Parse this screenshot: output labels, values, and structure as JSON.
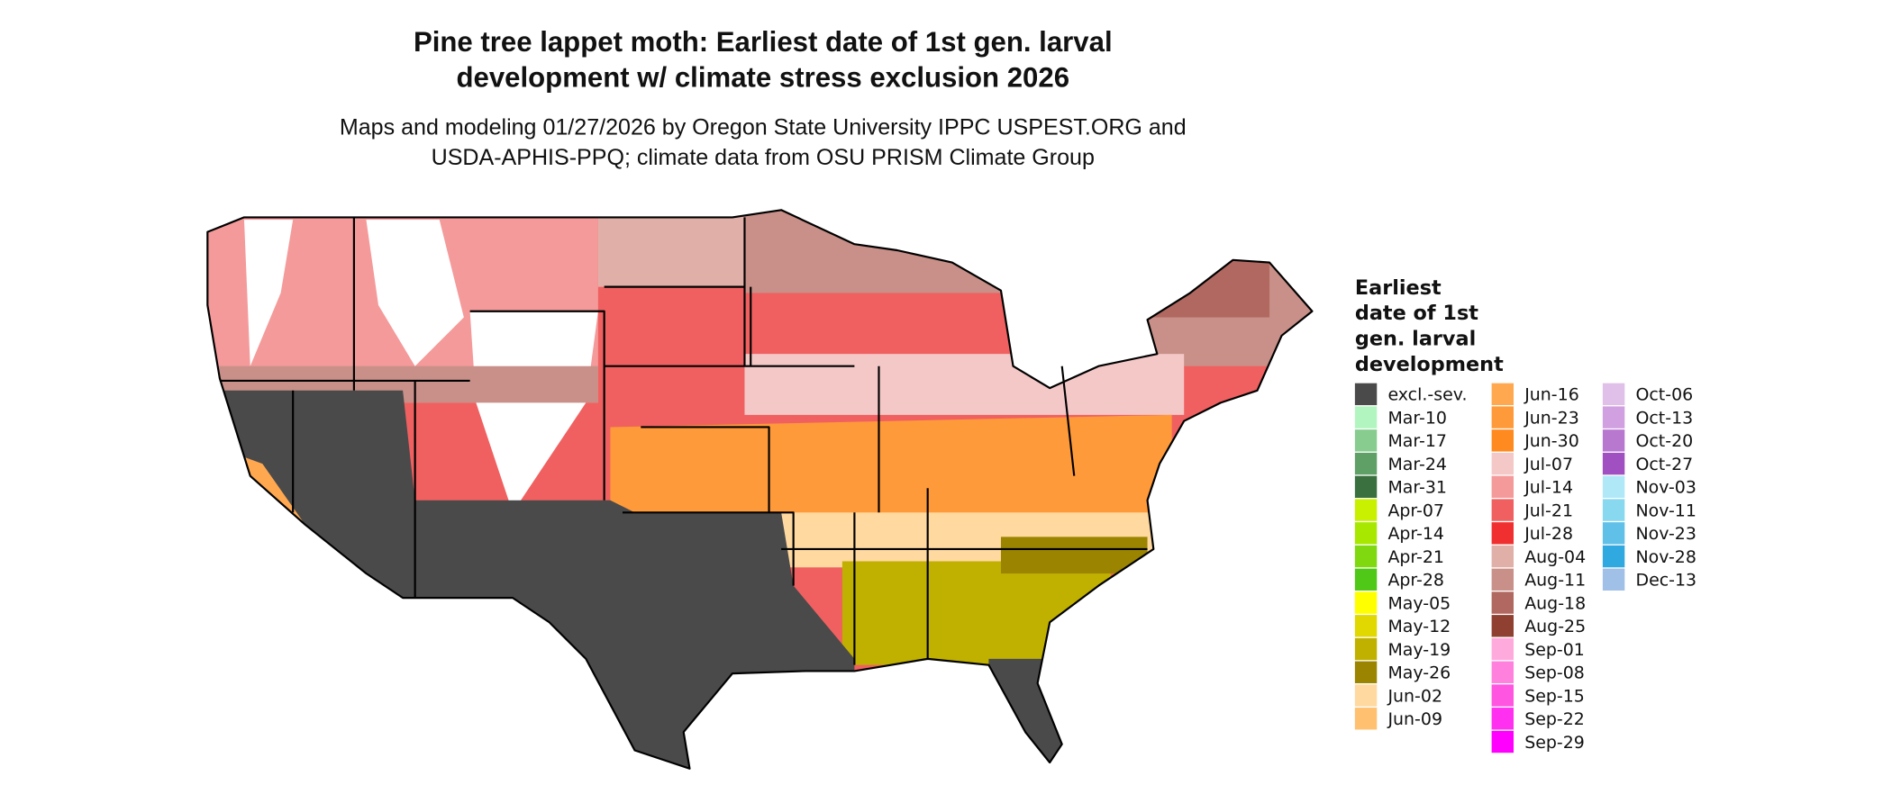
{
  "map": {
    "title": [
      "Pine tree lappet moth: Earliest date of 1st gen. larval",
      "development w/ climate stress exclusion 2026"
    ],
    "subtitle": [
      "Maps and modeling 01/27/2026 by Oregon State University IPPC USPEST.ORG and",
      "USDA-APHIS-PPQ; climate data from OSU PRISM Climate Group"
    ],
    "legend": {
      "title": [
        "Earliest",
        "date of 1st",
        "gen. larval",
        "development"
      ],
      "items": [
        {
          "label": "excl.-sev.",
          "color": "#4a4a4a"
        },
        {
          "label": "Mar-10",
          "color": "#b3f5c0"
        },
        {
          "label": "Mar-17",
          "color": "#88cc90"
        },
        {
          "label": "Mar-24",
          "color": "#5fa066"
        },
        {
          "label": "Mar-31",
          "color": "#3a7040"
        },
        {
          "label": "Apr-07",
          "color": "#c8f000"
        },
        {
          "label": "Apr-14",
          "color": "#a8e800"
        },
        {
          "label": "Apr-21",
          "color": "#80d810"
        },
        {
          "label": "Apr-28",
          "color": "#50c818"
        },
        {
          "label": "May-05",
          "color": "#ffff00"
        },
        {
          "label": "May-12",
          "color": "#e0d800"
        },
        {
          "label": "May-19",
          "color": "#c0b000"
        },
        {
          "label": "May-26",
          "color": "#9a8400"
        },
        {
          "label": "Jun-02",
          "color": "#ffd9a0"
        },
        {
          "label": "Jun-09",
          "color": "#ffc070"
        },
        {
          "label": "Jun-16",
          "color": "#ffa850"
        },
        {
          "label": "Jun-23",
          "color": "#ff9a3a"
        },
        {
          "label": "Jun-30",
          "color": "#ff8a20"
        },
        {
          "label": "Jul-07",
          "color": "#f5c8c8"
        },
        {
          "label": "Jul-14",
          "color": "#f49a9a"
        },
        {
          "label": "Jul-21",
          "color": "#f06060"
        },
        {
          "label": "Jul-28",
          "color": "#f03030"
        },
        {
          "label": "Aug-04",
          "color": "#e0b0a8"
        },
        {
          "label": "Aug-11",
          "color": "#c89088"
        },
        {
          "label": "Aug-18",
          "color": "#b06860"
        },
        {
          "label": "Aug-25",
          "color": "#904030"
        },
        {
          "label": "Sep-01",
          "color": "#ffaadd"
        },
        {
          "label": "Sep-08",
          "color": "#ff80dd"
        },
        {
          "label": "Sep-15",
          "color": "#ff55e0"
        },
        {
          "label": "Sep-22",
          "color": "#ff30f0"
        },
        {
          "label": "Sep-29",
          "color": "#ff00ff"
        },
        {
          "label": "Oct-06",
          "color": "#e0c0e8"
        },
        {
          "label": "Oct-13",
          "color": "#d0a0e0"
        },
        {
          "label": "Oct-20",
          "color": "#b878d0"
        },
        {
          "label": "Oct-27",
          "color": "#a050c0"
        },
        {
          "label": "Nov-03",
          "color": "#b0e8f8"
        },
        {
          "label": "Nov-11",
          "color": "#88d8f0"
        },
        {
          "label": "Nov-23",
          "color": "#60c0e8"
        },
        {
          "label": "Nov-28",
          "color": "#30a8e0"
        },
        {
          "label": "Dec-13",
          "color": "#a0c0e8"
        }
      ]
    }
  }
}
